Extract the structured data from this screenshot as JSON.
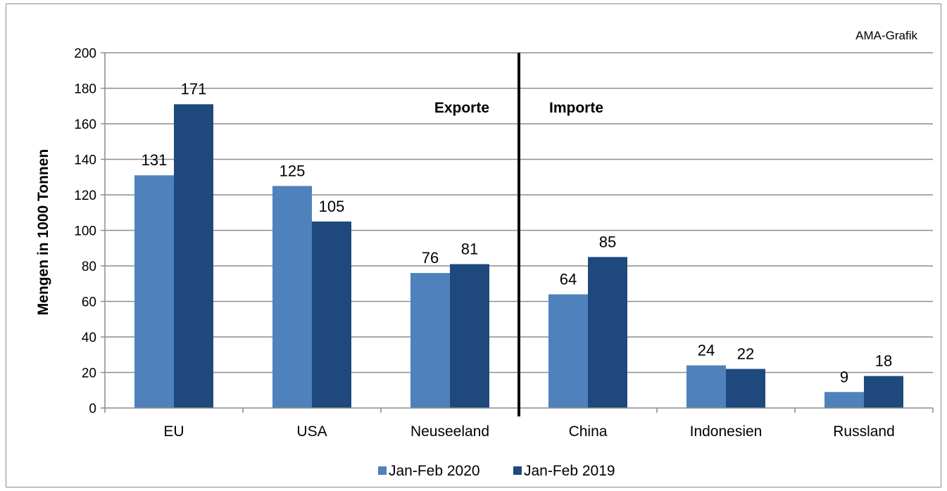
{
  "chart_data": {
    "type": "bar",
    "source_note": "AMA-Grafik",
    "ylabel": "Mengen in 1000 Tonnen",
    "ylim": [
      0,
      200
    ],
    "ytick_step": 20,
    "yticks": [
      "0",
      "20",
      "40",
      "60",
      "80",
      "100",
      "120",
      "140",
      "160",
      "180",
      "200"
    ],
    "categories": [
      "EU",
      "USA",
      "Neuseeland",
      "China",
      "Indonesien",
      "Russland"
    ],
    "section_labels": [
      "Exporte",
      "Importe"
    ],
    "series": [
      {
        "name": "Jan-Feb 2020",
        "color": "#4f81bd",
        "values": [
          131,
          125,
          76,
          64,
          24,
          9
        ]
      },
      {
        "name": "Jan-Feb 2019",
        "color": "#1f497d",
        "values": [
          171,
          105,
          81,
          85,
          22,
          18
        ]
      }
    ],
    "gridlines": true,
    "legend_position": "bottom",
    "divider_after_category": 3
  }
}
